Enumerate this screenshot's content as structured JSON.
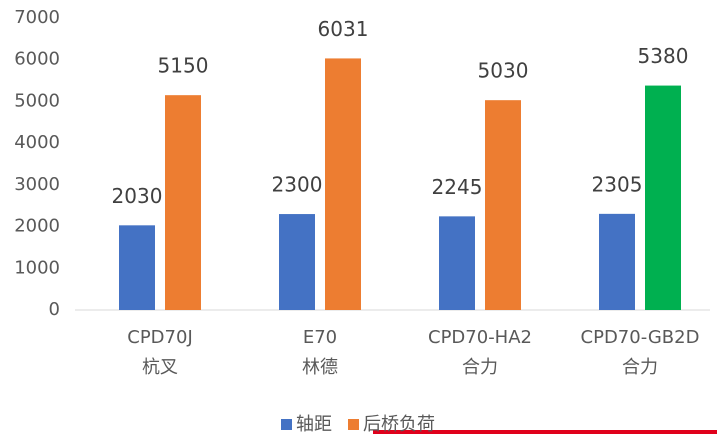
{
  "chart_data": {
    "type": "bar",
    "categories": [
      [
        "CPD70J",
        "杭叉"
      ],
      [
        "E70",
        "林德"
      ],
      [
        "CPD70-HA2",
        "合力"
      ],
      [
        "CPD70-GB2D",
        "合力"
      ]
    ],
    "series": [
      {
        "name": "轴距",
        "color": "#4472c4",
        "values": [
          2030,
          2300,
          2245,
          2305
        ]
      },
      {
        "name": "后桥负荷",
        "color": "#ed7d31",
        "colors": [
          "#ed7d31",
          "#ed7d31",
          "#ed7d31",
          "#00b050"
        ],
        "values": [
          5150,
          6031,
          5030,
          5380
        ]
      }
    ],
    "ylim": [
      0,
      7000
    ],
    "yticks": [
      0,
      1000,
      2000,
      3000,
      4000,
      5000,
      6000,
      7000
    ],
    "grid": false,
    "legend": "bottom"
  }
}
